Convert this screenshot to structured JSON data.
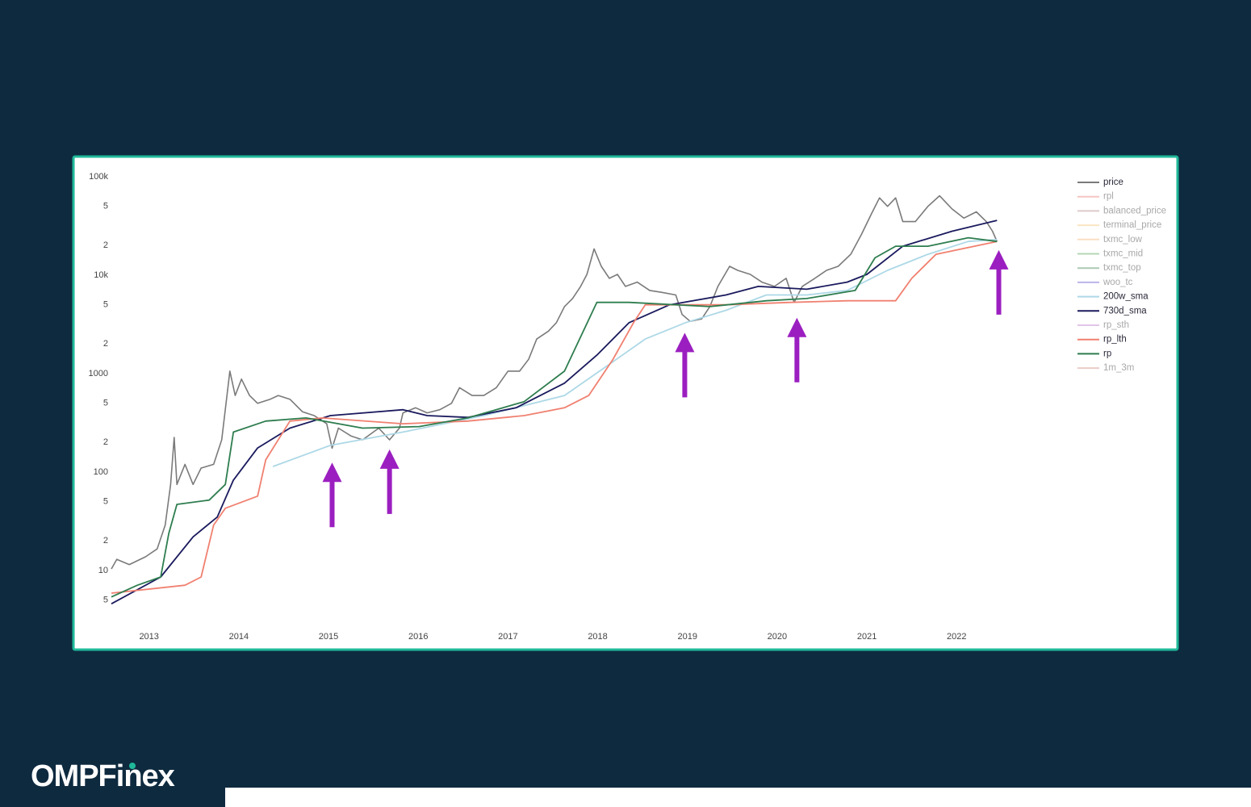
{
  "brand": "OMPFinex",
  "chart_data": {
    "type": "line",
    "log_y": true,
    "legend": "right",
    "xlim": [
      2012.58,
      2023.05
    ],
    "xticks": [
      2013,
      2014,
      2015,
      2016,
      2017,
      2018,
      2019,
      2020,
      2021,
      2022
    ],
    "ylim": [
      4,
      100000
    ],
    "yticks": [
      {
        "value": 100000,
        "label": "100k"
      },
      {
        "value": 50000,
        "label": "5"
      },
      {
        "value": 20000,
        "label": "2"
      },
      {
        "value": 10000,
        "label": "10k"
      },
      {
        "value": 5000,
        "label": "5"
      },
      {
        "value": 2000,
        "label": "2"
      },
      1000,
      {
        "value": 500,
        "label": "5"
      },
      {
        "value": 200,
        "label": "2"
      },
      100,
      {
        "value": 50,
        "label": "5"
      },
      {
        "value": 20,
        "label": "2"
      },
      10,
      5
    ],
    "series": [
      {
        "name": "price",
        "color": "#7a7a7a",
        "x": [
          2012.58,
          2012.64,
          2012.78,
          2012.96,
          2013.09,
          2013.18,
          2013.24,
          2013.28,
          2013.31,
          2013.4,
          2013.49,
          2013.58,
          2013.72,
          2013.81,
          2013.9,
          2013.96,
          2014.03,
          2014.12,
          2014.21,
          2014.35,
          2014.44,
          2014.57,
          2014.71,
          2014.84,
          2014.98,
          2015.04,
          2015.11,
          2015.25,
          2015.38,
          2015.56,
          2015.68,
          2015.79,
          2015.83,
          2015.97,
          2016.1,
          2016.24,
          2016.37,
          2016.46,
          2016.6,
          2016.73,
          2016.87,
          2017.0,
          2017.13,
          2017.23,
          2017.32,
          2017.45,
          2017.54,
          2017.63,
          2017.72,
          2017.81,
          2017.88,
          2017.96,
          2018.04,
          2018.13,
          2018.22,
          2018.31,
          2018.44,
          2018.58,
          2018.71,
          2018.87,
          2018.94,
          2019.03,
          2019.16,
          2019.25,
          2019.34,
          2019.47,
          2019.56,
          2019.7,
          2019.83,
          2019.97,
          2020.1,
          2020.19,
          2020.28,
          2020.42,
          2020.55,
          2020.68,
          2020.82,
          2020.94,
          2021.05,
          2021.14,
          2021.23,
          2021.32,
          2021.4,
          2021.54,
          2021.68,
          2021.81,
          2021.95,
          2022.08,
          2022.22,
          2022.33,
          2022.4,
          2022.45
        ],
        "values": [
          10.4,
          13,
          11.5,
          13.8,
          16.6,
          29,
          75,
          225,
          75,
          120,
          75,
          110,
          120,
          213,
          1060,
          600,
          880,
          600,
          500,
          550,
          600,
          550,
          410,
          375,
          310,
          175,
          280,
          233,
          213,
          280,
          213,
          280,
          400,
          450,
          400,
          430,
          500,
          720,
          600,
          600,
          720,
          1060,
          1060,
          1400,
          2250,
          2700,
          3300,
          4800,
          5800,
          7700,
          10200,
          18500,
          12300,
          9300,
          10200,
          7700,
          8500,
          7000,
          6700,
          6300,
          4000,
          3400,
          3600,
          4800,
          7700,
          12300,
          11200,
          10200,
          8500,
          7700,
          9300,
          5300,
          7700,
          9300,
          11200,
          12300,
          16300,
          26000,
          42000,
          61000,
          50000,
          61000,
          35000,
          35000,
          50000,
          64000,
          47000,
          38000,
          44000,
          35000,
          28000,
          22000
        ]
      },
      {
        "name": "rpl",
        "color": "#e8837a",
        "hidden": true
      },
      {
        "name": "balanced_price",
        "color": "#b98a8a",
        "hidden": true
      },
      {
        "name": "terminal_price",
        "color": "#f5c77a",
        "hidden": true
      },
      {
        "name": "txmc_low",
        "color": "#f5b97a",
        "hidden": true
      },
      {
        "name": "txmc_mid",
        "color": "#5aa85a",
        "hidden": true
      },
      {
        "name": "txmc_top",
        "color": "#4a8a5a",
        "hidden": true
      },
      {
        "name": "woo_tc",
        "color": "#6b5bd0",
        "hidden": true
      },
      {
        "name": "200w_sma",
        "color": "#add8e6",
        "x": [
          2014.38,
          2015.02,
          2015.83,
          2016.73,
          2017.63,
          2018.08,
          2018.53,
          2018.98,
          2019.43,
          2019.88,
          2020.33,
          2020.78,
          2021.23,
          2021.68,
          2022.13,
          2022.45
        ],
        "values": [
          114,
          187,
          255,
          375,
          600,
          1160,
          2250,
          3300,
          4400,
          6300,
          6300,
          7000,
          11200,
          16300,
          22000,
          23000
        ]
      },
      {
        "name": "730d_sma",
        "color": "#1a1a5e",
        "x": [
          2012.58,
          2013.13,
          2013.49,
          2013.76,
          2013.94,
          2014.21,
          2014.57,
          2015.02,
          2015.83,
          2016.1,
          2016.55,
          2017.09,
          2017.63,
          2017.99,
          2018.35,
          2018.8,
          2019.43,
          2019.79,
          2020.33,
          2020.78,
          2021.0,
          2021.4,
          2021.95,
          2022.45
        ],
        "values": [
          4.6,
          8.6,
          22,
          35,
          83,
          176,
          280,
          375,
          430,
          375,
          360,
          450,
          800,
          1540,
          3300,
          5000,
          6300,
          7700,
          7200,
          8500,
          10200,
          19700,
          28000,
          36000
        ]
      },
      {
        "name": "rp_sth",
        "color": "#c080d0",
        "hidden": true
      },
      {
        "name": "rp_lth",
        "color": "#f08070",
        "x": [
          2012.58,
          2013.4,
          2013.58,
          2013.72,
          2013.85,
          2014.21,
          2014.3,
          2014.57,
          2014.93,
          2015.83,
          2016.55,
          2017.18,
          2017.63,
          2017.9,
          2018.17,
          2018.4,
          2018.53,
          2019.43,
          2020.15,
          2020.78,
          2021.32,
          2021.5,
          2021.77,
          2022.45
        ],
        "values": [
          5.9,
          7.1,
          8.6,
          29,
          43,
          57,
          133,
          330,
          355,
          310,
          330,
          375,
          450,
          600,
          1400,
          3300,
          5000,
          5000,
          5300,
          5500,
          5500,
          9300,
          16300,
          22000
        ]
      },
      {
        "name": "rp",
        "color": "#2e7d4f",
        "x": [
          2012.58,
          2012.87,
          2013.13,
          2013.22,
          2013.31,
          2013.67,
          2013.85,
          2013.94,
          2014.3,
          2014.75,
          2015.38,
          2016.01,
          2016.55,
          2017.18,
          2017.63,
          2017.99,
          2018.35,
          2019.25,
          2019.88,
          2020.33,
          2020.87,
          2021.09,
          2021.32,
          2021.68,
          2022.13,
          2022.45
        ],
        "values": [
          5.4,
          7.1,
          8.6,
          24,
          47,
          52,
          75,
          255,
          330,
          355,
          280,
          290,
          355,
          520,
          1060,
          5300,
          5300,
          4800,
          5500,
          5800,
          7000,
          15000,
          19700,
          19700,
          24000,
          22000
        ]
      },
      {
        "name": "1m_3m",
        "color": "#d09080",
        "hidden": true
      }
    ],
    "annotations": [
      {
        "x": 2015.04,
        "y": 125
      },
      {
        "x": 2015.68,
        "y": 170
      },
      {
        "x": 2018.97,
        "y": 2600
      },
      {
        "x": 2020.22,
        "y": 3700
      },
      {
        "x": 2022.47,
        "y": 18000
      }
    ],
    "annotation_color": "#9b1fc0"
  }
}
